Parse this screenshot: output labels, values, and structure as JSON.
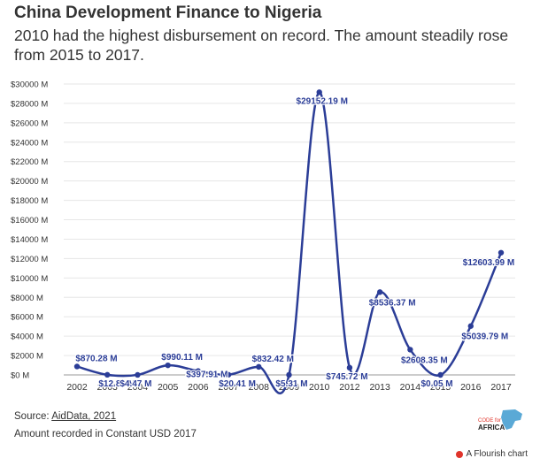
{
  "title": "China Development Finance to Nigeria",
  "subtitle": "2010 had the highest disbursement on record. The amount steadily rose from 2015 to 2017.",
  "chart_data": {
    "type": "line",
    "categories": [
      "2002",
      "2003",
      "2004",
      "2005",
      "2006",
      "2007",
      "2008",
      "2009",
      "2010",
      "2012",
      "2013",
      "2014",
      "2015",
      "2016",
      "2017"
    ],
    "values": [
      870.28,
      12.83,
      4.47,
      990.11,
      397.91,
      20.41,
      832.42,
      5.31,
      29152.19,
      745.72,
      8536.37,
      2608.35,
      0.05,
      5039.79,
      12603.99
    ],
    "data_labels": [
      "$870.28 M",
      "$12.83 M",
      "$4.47 M",
      "$990.11 M",
      "$397.91 M",
      "$20.41 M",
      "$832.42 M",
      "$5.31 M",
      "$29152.19 M",
      "$745.72 M",
      "$8536.37 M",
      "$2608.35 M",
      "$0.05 M",
      "$5039.79 M",
      "$12603.99 M"
    ],
    "ylim": [
      0,
      30000
    ],
    "y_ticks": [
      0,
      2000,
      4000,
      6000,
      8000,
      10000,
      12000,
      14000,
      16000,
      18000,
      20000,
      22000,
      24000,
      26000,
      28000,
      30000
    ],
    "y_tick_labels": [
      "$0 M",
      "$2000 M",
      "$4000 M",
      "$6000 M",
      "$8000 M",
      "$10000 M",
      "$12000 M",
      "$14000 M",
      "$16000 M",
      "$18000 M",
      "$20000 M",
      "$22000 M",
      "$24000 M",
      "$26000 M",
      "$28000 M",
      "$30000 M"
    ],
    "grid": true,
    "line_color": "#2b3d97"
  },
  "footer": {
    "source_prefix": "Source: ",
    "source_link": "AidData, 2021",
    "note": "Amount recorded in Constant USD 2017"
  },
  "logo": {
    "line1": "CODE for",
    "line2": "AFRICA"
  },
  "flourish_label": "A Flourish chart"
}
